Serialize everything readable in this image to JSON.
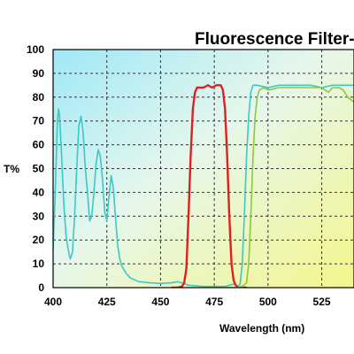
{
  "chart_data": {
    "type": "line",
    "title": "Fluorescence Filter-",
    "xlabel": "Wavelength (nm)",
    "ylabel": "T%",
    "xlim": [
      400,
      540
    ],
    "ylim": [
      0,
      100
    ],
    "x_ticks": [
      400,
      425,
      450,
      475,
      500,
      525
    ],
    "y_ticks": [
      0,
      10,
      20,
      30,
      40,
      50,
      60,
      70,
      80,
      90,
      100
    ],
    "grid": true,
    "background": "gradient cyan to yellow",
    "series": [
      {
        "color": "#3cc8c8",
        "points": [
          [
            400,
            16
          ],
          [
            401,
            40
          ],
          [
            402,
            70
          ],
          [
            402.5,
            75
          ],
          [
            403,
            72
          ],
          [
            404,
            55
          ],
          [
            405,
            35
          ],
          [
            406,
            22
          ],
          [
            407,
            16
          ],
          [
            408,
            12
          ],
          [
            409,
            15
          ],
          [
            410,
            30
          ],
          [
            411,
            50
          ],
          [
            412,
            68
          ],
          [
            413,
            72
          ],
          [
            414,
            65
          ],
          [
            415,
            50
          ],
          [
            416,
            40
          ],
          [
            416.5,
            34
          ],
          [
            417,
            28
          ],
          [
            418,
            30
          ],
          [
            419,
            40
          ],
          [
            420,
            52
          ],
          [
            421,
            58
          ],
          [
            422,
            55
          ],
          [
            423,
            45
          ],
          [
            424,
            32
          ],
          [
            425,
            28
          ],
          [
            426,
            38
          ],
          [
            427,
            47
          ],
          [
            428,
            42
          ],
          [
            429,
            30
          ],
          [
            430,
            18
          ],
          [
            431,
            12
          ],
          [
            432,
            9
          ],
          [
            434,
            6
          ],
          [
            436,
            4
          ],
          [
            440,
            2.5
          ],
          [
            445,
            2
          ],
          [
            450,
            1.8
          ],
          [
            455,
            2
          ],
          [
            458,
            2.5
          ],
          [
            460,
            2
          ],
          [
            463,
            1
          ],
          [
            470,
            0.5
          ],
          [
            475,
            0.5
          ],
          [
            480,
            0.5
          ],
          [
            484,
            1.5
          ],
          [
            486,
            0.5
          ],
          [
            487,
            1.5
          ],
          [
            488,
            10
          ],
          [
            489,
            30
          ],
          [
            490,
            55
          ],
          [
            491,
            72
          ],
          [
            492,
            82
          ],
          [
            493,
            85
          ],
          [
            495,
            85
          ],
          [
            500,
            84
          ],
          [
            505,
            85
          ],
          [
            510,
            85
          ],
          [
            520,
            85
          ],
          [
            525,
            84
          ],
          [
            530,
            85
          ],
          [
            535,
            85
          ],
          [
            540,
            85
          ]
        ]
      },
      {
        "color": "#e02020",
        "points": [
          [
            455,
            0
          ],
          [
            458,
            0
          ],
          [
            460,
            0.5
          ],
          [
            461,
            2
          ],
          [
            462,
            8
          ],
          [
            463,
            30
          ],
          [
            464,
            55
          ],
          [
            465,
            75
          ],
          [
            466,
            82
          ],
          [
            467,
            84
          ],
          [
            470,
            84
          ],
          [
            472,
            85
          ],
          [
            474,
            84
          ],
          [
            476,
            85
          ],
          [
            478,
            85
          ],
          [
            479,
            83
          ],
          [
            480,
            75
          ],
          [
            481,
            55
          ],
          [
            482,
            30
          ],
          [
            483,
            10
          ],
          [
            484,
            3
          ],
          [
            485,
            1
          ],
          [
            486,
            0
          ],
          [
            490,
            0
          ]
        ]
      },
      {
        "color": "#8cc83c",
        "points": [
          [
            470,
            0
          ],
          [
            480,
            0
          ],
          [
            485,
            0
          ],
          [
            488,
            0.5
          ],
          [
            490,
            2
          ],
          [
            491,
            10
          ],
          [
            492,
            30
          ],
          [
            493,
            55
          ],
          [
            494,
            72
          ],
          [
            495,
            80
          ],
          [
            496,
            83
          ],
          [
            498,
            84
          ],
          [
            500,
            83
          ],
          [
            505,
            84
          ],
          [
            510,
            84
          ],
          [
            515,
            84
          ],
          [
            520,
            84
          ],
          [
            525,
            84
          ],
          [
            528,
            82
          ],
          [
            530,
            84
          ],
          [
            533,
            84
          ],
          [
            535,
            83
          ],
          [
            537,
            80
          ],
          [
            540,
            78
          ]
        ]
      }
    ]
  }
}
